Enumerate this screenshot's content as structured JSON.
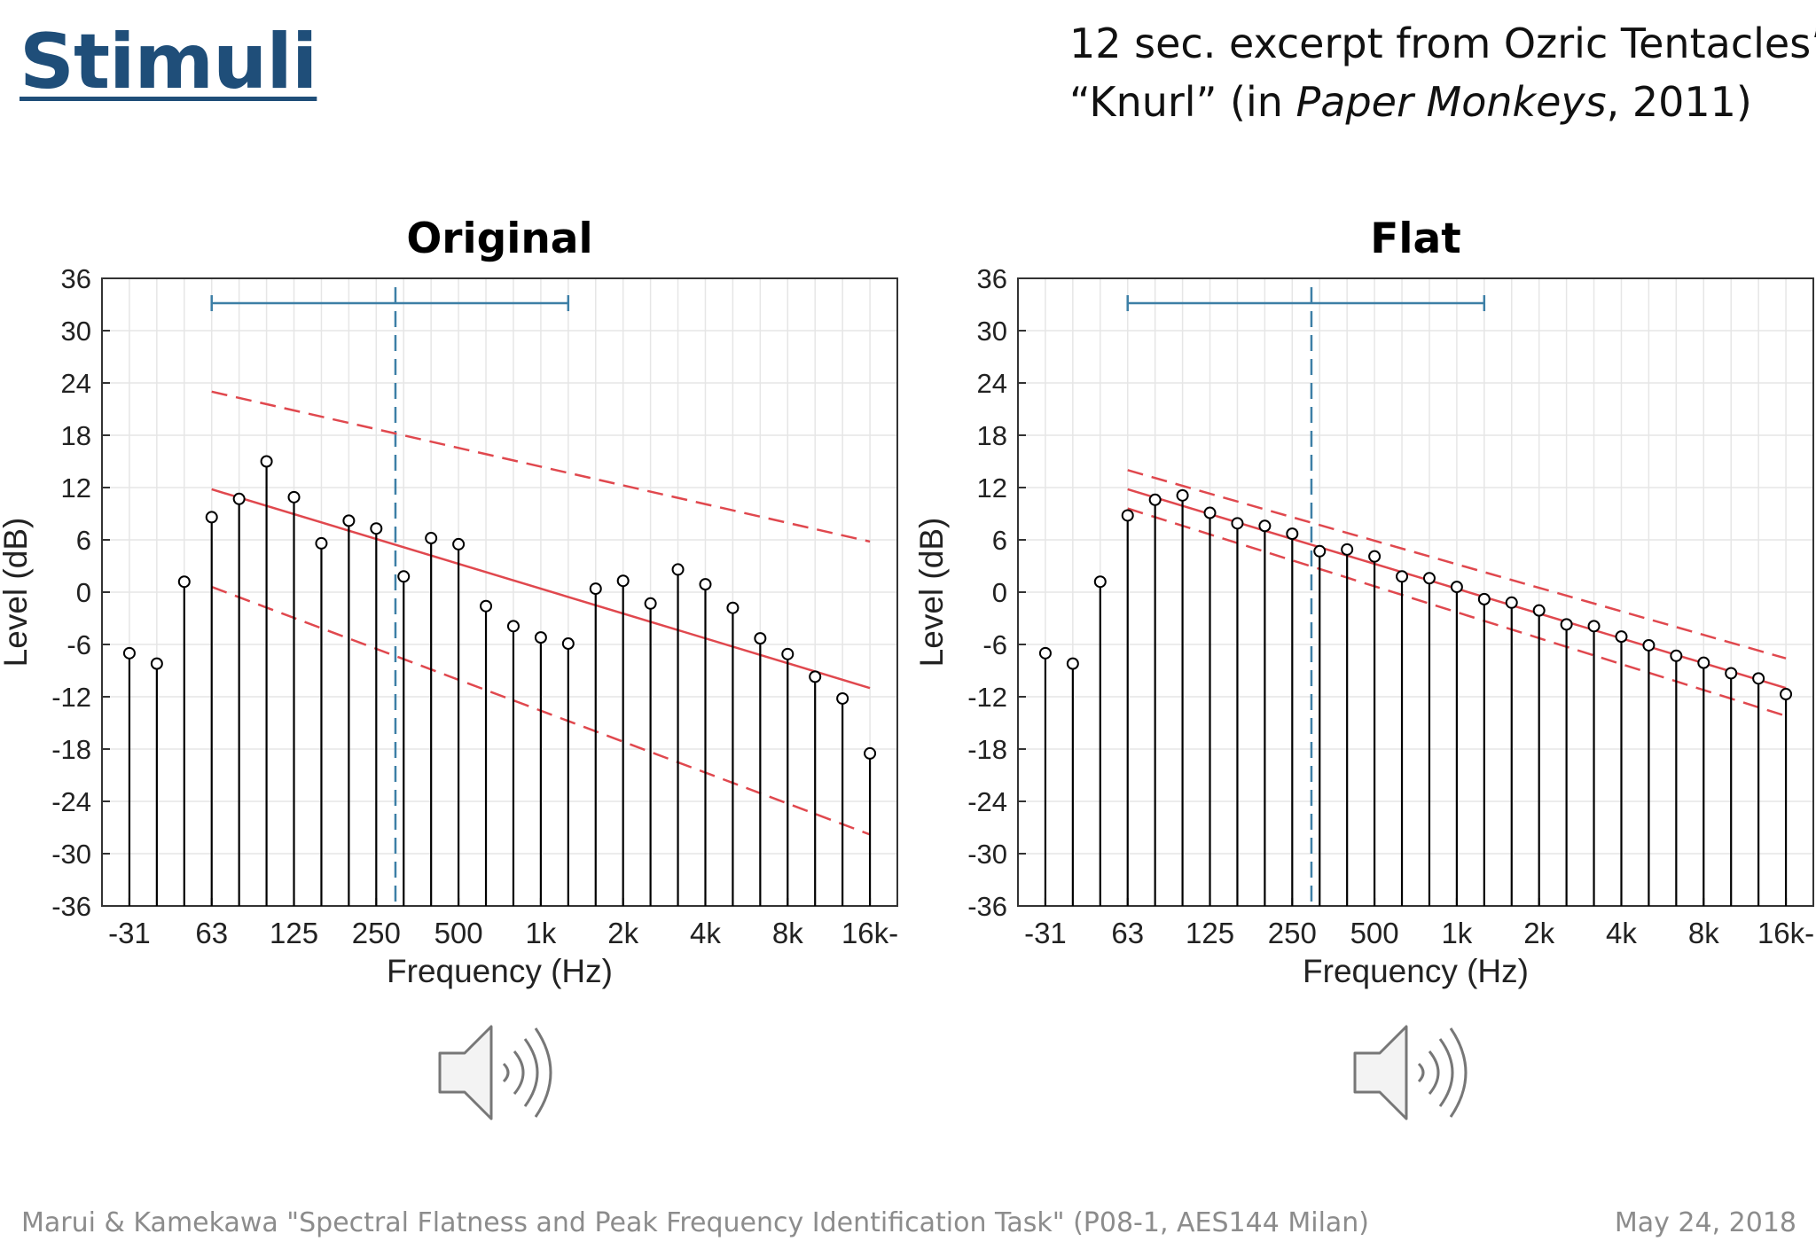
{
  "slide": {
    "title": "Stimuli",
    "subtitle_line1": "12 sec. excerpt from Ozric Tentacles’",
    "subtitle_line2_a": "“Knurl” (in ",
    "subtitle_line2_italic": "Paper Monkeys",
    "subtitle_line2_b": ", 2011)",
    "footer_left": "Marui & Kamekawa \"Spectral Flatness and Peak Frequency Identification Task\" (P08-1, AES144 Milan)",
    "footer_right": "May 24, 2018"
  },
  "icons": [
    "speaker-icon",
    "speaker-icon"
  ],
  "colors": {
    "title": "#1f4e79",
    "stem": "#000000",
    "regression": "#e0484e",
    "marker": "#3d7fa6"
  },
  "chart_data": [
    {
      "type": "stem",
      "title": "Original",
      "xlabel": "Frequency (Hz)",
      "ylabel": "Level (dB)",
      "ylim": [
        -36,
        36
      ],
      "yticks": [
        36,
        30,
        24,
        18,
        12,
        6,
        0,
        -6,
        -12,
        -18,
        -24,
        -30,
        -36
      ],
      "xtick_labels": [
        "-31",
        "63",
        "125",
        "250",
        "500",
        "1k",
        "2k",
        "4k",
        "8k",
        "16k-"
      ],
      "x": [
        "31.5",
        "40",
        "50",
        "63",
        "80",
        "100",
        "125",
        "160",
        "200",
        "250",
        "315",
        "400",
        "500",
        "630",
        "800",
        "1k",
        "1.25k",
        "1.6k",
        "2k",
        "2.5k",
        "3.15k",
        "4k",
        "5k",
        "6.3k",
        "8k",
        "10k",
        "12.5k",
        "16k"
      ],
      "values": [
        -7,
        -8.2,
        1.2,
        8.6,
        10.7,
        15,
        10.9,
        5.6,
        8.2,
        7.3,
        1.8,
        6.2,
        5.5,
        -1.6,
        -3.9,
        -5.2,
        -5.9,
        0.4,
        1.3,
        -1.3,
        2.6,
        0.9,
        -1.8,
        -5.3,
        -7.1,
        -9.7,
        -12.2,
        -18.5
      ],
      "grid": true,
      "fit_line": {
        "start": 11.8,
        "end": -11
      },
      "bounds_upper": {
        "start": 23,
        "end": 5.8
      },
      "bounds_lower": {
        "start": 0.6,
        "end": -27.8
      },
      "range_bar": {
        "from": "63",
        "to": "1.25k",
        "center": "315"
      }
    },
    {
      "type": "stem",
      "title": "Flat",
      "xlabel": "Frequency (Hz)",
      "ylabel": "Level (dB)",
      "ylim": [
        -36,
        36
      ],
      "yticks": [
        36,
        30,
        24,
        18,
        12,
        6,
        0,
        -6,
        -12,
        -18,
        -24,
        -30,
        -36
      ],
      "xtick_labels": [
        "-31",
        "63",
        "125",
        "250",
        "500",
        "1k",
        "2k",
        "4k",
        "8k",
        "16k-"
      ],
      "x": [
        "31.5",
        "40",
        "50",
        "63",
        "80",
        "100",
        "125",
        "160",
        "200",
        "250",
        "315",
        "400",
        "500",
        "630",
        "800",
        "1k",
        "1.25k",
        "1.6k",
        "2k",
        "2.5k",
        "3.15k",
        "4k",
        "5k",
        "6.3k",
        "8k",
        "10k",
        "12.5k",
        "16k"
      ],
      "values": [
        -7,
        -8.2,
        1.2,
        8.8,
        10.6,
        11.1,
        9.1,
        7.9,
        7.6,
        6.7,
        4.7,
        4.9,
        4.1,
        1.8,
        1.6,
        0.6,
        -0.8,
        -1.2,
        -2.1,
        -3.7,
        -3.9,
        -5.1,
        -6.1,
        -7.3,
        -8.1,
        -9.3,
        -9.9,
        -11.7
      ],
      "grid": true,
      "fit_line": {
        "start": 11.8,
        "end": -11
      },
      "bounds_upper": {
        "start": 14,
        "end": -7.6
      },
      "bounds_lower": {
        "start": 9.6,
        "end": -14.2
      },
      "range_bar": {
        "from": "63",
        "to": "1.25k",
        "center": "315"
      }
    }
  ]
}
